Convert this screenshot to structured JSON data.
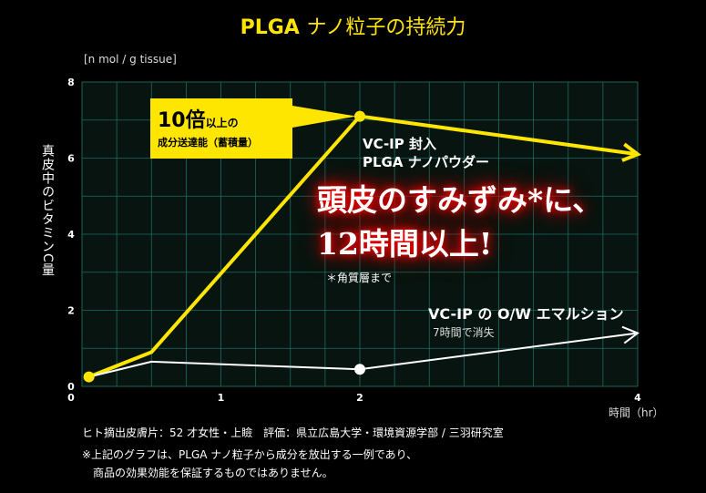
{
  "title": {
    "prefix": "PLGA",
    "rest": "ナノ粒子の持続力"
  },
  "chart_data": {
    "type": "line",
    "ylabel": "真皮中のビタミンC量",
    "yunit": "[n mol / g tissue]",
    "xlabel": "時間（hr）",
    "ylim": [
      0,
      8
    ],
    "xlim": [
      0,
      4
    ],
    "yticks": [
      "0",
      "2",
      "4",
      "6",
      "8"
    ],
    "xticks": [
      "1",
      "2",
      "4"
    ],
    "grid": true,
    "series": [
      {
        "name": "VC-IP 封入 PLGA ナノパウダー",
        "color": "#ffe600",
        "x": [
          0.05,
          0.5,
          2,
          4
        ],
        "y": [
          0.25,
          0.9,
          7.1,
          6.1
        ]
      },
      {
        "name": "VC-IP の O/W エマルション",
        "color": "#ffffff",
        "x": [
          0.05,
          0.5,
          2,
          4
        ],
        "y": [
          0.25,
          0.65,
          0.45,
          1.4
        ]
      }
    ],
    "annotations": {
      "callout_big": "10倍",
      "callout_small": "以上の",
      "callout_line2": "成分送達能（蓄積量）",
      "vcip_line1": "VC-IP 封入",
      "vcip_line2": "PLGA ナノパウダー",
      "headline_line1": "頭皮のすみずみ*に、",
      "headline_line2": "12時間以上!",
      "footnote": "＊角質層まで",
      "ow_label": "VC-IP の O/W エマルション",
      "ow_sub": "7時間で消失"
    }
  },
  "source": "ヒト摘出皮膚片：52 才女性・上瞼　評価：県立広島大学・環境資源学部 / 三羽研究室",
  "note_line1": "※上記のグラフは、PLGA ナノ粒子から成分を放出する一例であり、",
  "note_line2": "商品の効果効能を保証するものではありません。"
}
